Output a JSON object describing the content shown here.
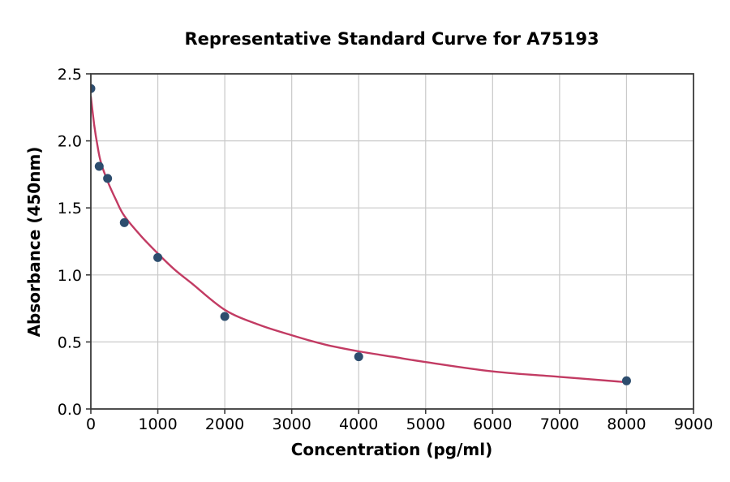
{
  "chart_data": {
    "type": "scatter",
    "title": "Representative Standard Curve for A75193",
    "xlabel": "Concentration (pg/ml)",
    "ylabel": "Absorbance (450nm)",
    "xlim": [
      0,
      9000
    ],
    "ylim": [
      0,
      2.5
    ],
    "x_ticks": [
      0,
      1000,
      2000,
      3000,
      4000,
      5000,
      6000,
      7000,
      8000,
      9000
    ],
    "y_ticks": [
      0.0,
      0.5,
      1.0,
      1.5,
      2.0,
      2.5
    ],
    "grid": true,
    "legend": false,
    "series": [
      {
        "name": "standards",
        "marker": "circle",
        "x": [
          0,
          125,
          250,
          500,
          1000,
          2000,
          4000,
          8000
        ],
        "y": [
          2.39,
          1.81,
          1.72,
          1.39,
          1.13,
          0.69,
          0.39,
          0.21
        ]
      }
    ],
    "fit_curve": {
      "name": "4PL-fit",
      "x": [
        0,
        50,
        100,
        150,
        250,
        375,
        500,
        750,
        1000,
        1250,
        1500,
        2000,
        2500,
        3000,
        3500,
        4000,
        4500,
        5000,
        6000,
        7000,
        8000
      ],
      "y": [
        2.33,
        2.12,
        1.96,
        1.84,
        1.7,
        1.56,
        1.44,
        1.29,
        1.16,
        1.04,
        0.94,
        0.74,
        0.63,
        0.55,
        0.48,
        0.43,
        0.39,
        0.35,
        0.28,
        0.24,
        0.2
      ]
    },
    "colors": {
      "point": "#2d4d6e",
      "curve": "#c23b63",
      "grid": "#c9c9c9",
      "axis": "#3a3a3a",
      "text": "#000000",
      "background": "#ffffff"
    },
    "marker_radius": 5.5,
    "curve_width": 2.4
  }
}
